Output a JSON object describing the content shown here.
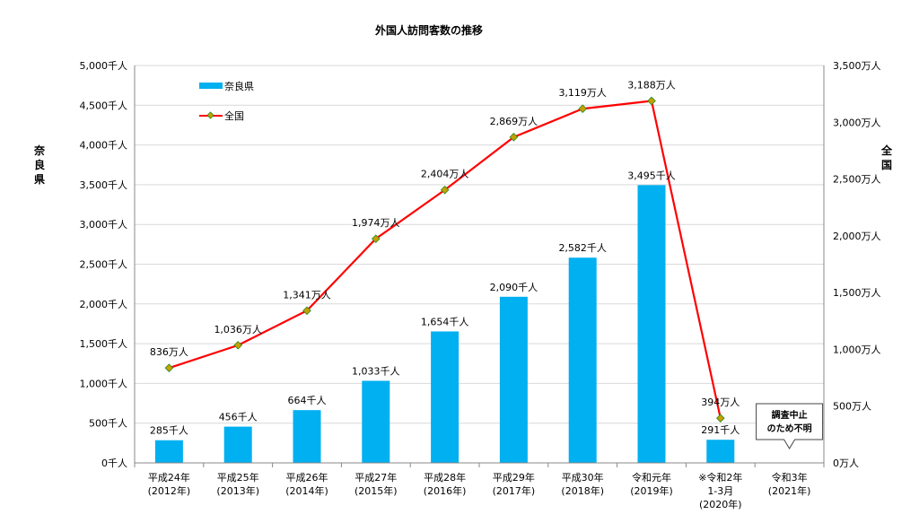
{
  "chart_data": {
    "type": "bar",
    "title": "外国人訪問客数の推移",
    "ylabel_left": "奈良県",
    "ylabel_right": "全国",
    "left_axis": {
      "unit_suffix": "千人",
      "ylim": [
        0,
        5000
      ],
      "ticks": [
        "0千人",
        "500千人",
        "1,000千人",
        "1,500千人",
        "2,000千人",
        "2,500千人",
        "3,000千人",
        "3,500千人",
        "4,000千人",
        "4,500千人",
        "5,000千人"
      ]
    },
    "right_axis": {
      "unit_suffix": "万人",
      "ylim": [
        0,
        3500
      ],
      "ticks": [
        "0万人",
        "500万人",
        "1,000万人",
        "1,500万人",
        "2,000万人",
        "2,500万人",
        "3,000万人",
        "3,500万人"
      ]
    },
    "categories": [
      [
        "平成24年",
        "(2012年)"
      ],
      [
        "平成25年",
        "(2013年)"
      ],
      [
        "平成26年",
        "(2014年)"
      ],
      [
        "平成27年",
        "(2015年)"
      ],
      [
        "平成28年",
        "(2016年)"
      ],
      [
        "平成29年",
        "(2017年)"
      ],
      [
        "平成30年",
        "(2018年)"
      ],
      [
        "令和元年",
        "(2019年)"
      ],
      [
        "※令和2年",
        "1-3月",
        "(2020年)"
      ],
      [
        "令和3年",
        "(2021年)"
      ]
    ],
    "series": [
      {
        "name": "奈良県",
        "type": "bar",
        "axis": "left",
        "color": "#00B0F0",
        "values": [
          285,
          456,
          664,
          1033,
          1654,
          2090,
          2582,
          3495,
          291,
          null
        ],
        "labels": [
          "285千人",
          "456千人",
          "664千人",
          "1,033千人",
          "1,654千人",
          "2,090千人",
          "2,582千人",
          "3,495千人",
          "291千人",
          ""
        ]
      },
      {
        "name": "全国",
        "type": "line",
        "axis": "right",
        "color": "#FF0000",
        "marker_color": "#C8A000",
        "values": [
          836,
          1036,
          1341,
          1974,
          2404,
          2869,
          3119,
          3188,
          394,
          null
        ],
        "labels": [
          "836万人",
          "1,036万人",
          "1,341万人",
          "1,974万人",
          "2,404万人",
          "2,869万人",
          "3,119万人",
          "3,188万人",
          "394万人",
          ""
        ]
      }
    ],
    "callout": {
      "lines": [
        "調査中止",
        "のため不明"
      ],
      "category_index": 9
    },
    "legend_position": "top-left",
    "grid": true
  }
}
